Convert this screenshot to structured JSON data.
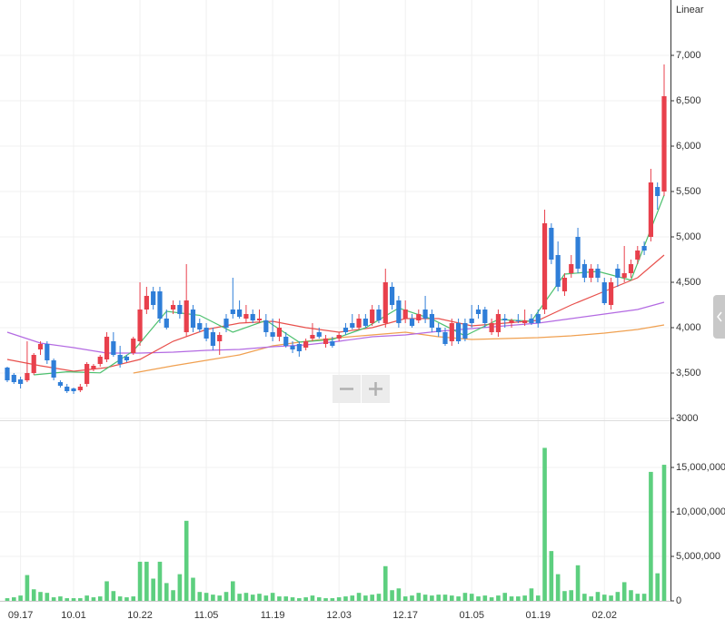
{
  "chart_data": [
    {
      "type": "candlestick",
      "scale_label": "Linear",
      "up_color": "#e8404c",
      "down_color": "#2f7ed8",
      "open": [
        3560,
        3480,
        3430,
        3420,
        3500,
        3760,
        3820,
        3640,
        3400,
        3350,
        3330,
        3310,
        3380,
        3540,
        3600,
        3650,
        3850,
        3700,
        3680,
        3720,
        3850,
        4200,
        4400,
        4400,
        4100,
        4200,
        4250,
        3950,
        4200,
        4050,
        4000,
        3950,
        3850,
        4100,
        4200,
        4200,
        4100,
        4150,
        4080,
        4080,
        3950,
        3900,
        3900,
        3800,
        3820,
        3780,
        3880,
        3950,
        3820,
        3850,
        3880,
        4000,
        4050,
        4000,
        4100,
        4050,
        4200,
        4050,
        4450,
        4300,
        4100,
        4100,
        4080,
        4200,
        4150,
        4000,
        3950,
        3850,
        4050,
        4050,
        4100,
        4200,
        4200,
        3950,
        3950,
        4100,
        4050,
        4080,
        4050,
        4100,
        4150,
        4200,
        5100,
        4800,
        4400,
        4600,
        5000,
        4700,
        4550,
        4650,
        4500,
        4250,
        4650,
        4550,
        4600,
        4750,
        4900,
        5000,
        5550,
        5500
      ],
      "high": [
        3570,
        3500,
        3460,
        3850,
        3720,
        3850,
        3850,
        3660,
        3420,
        3380,
        3340,
        3380,
        3620,
        3600,
        3700,
        3950,
        3950,
        3800,
        3700,
        3900,
        4500,
        4450,
        4450,
        4450,
        4200,
        4300,
        4300,
        4700,
        4250,
        4100,
        4050,
        4000,
        3950,
        4150,
        4550,
        4300,
        4250,
        4200,
        4200,
        4150,
        4100,
        4100,
        3950,
        3850,
        3850,
        3880,
        4050,
        4000,
        3920,
        3900,
        3950,
        4050,
        4150,
        4150,
        4150,
        4250,
        4250,
        4650,
        4500,
        4350,
        4300,
        4150,
        4200,
        4350,
        4200,
        4050,
        4000,
        4100,
        4100,
        4100,
        4250,
        4250,
        4230,
        4100,
        4200,
        4150,
        4100,
        4150,
        4200,
        4150,
        4200,
        5300,
        5150,
        4950,
        4600,
        4800,
        5100,
        4750,
        4700,
        4700,
        4550,
        4550,
        4700,
        4900,
        4750,
        4900,
        4950,
        5750,
        5600,
        6900
      ],
      "low": [
        3400,
        3380,
        3330,
        3400,
        3480,
        3700,
        3600,
        3420,
        3340,
        3280,
        3270,
        3290,
        3350,
        3520,
        3570,
        3620,
        3680,
        3560,
        3620,
        3700,
        3800,
        4150,
        4200,
        4050,
        3980,
        4150,
        4100,
        3900,
        3950,
        3950,
        3850,
        3750,
        3700,
        3950,
        4100,
        4100,
        4050,
        4050,
        4050,
        3900,
        3850,
        3850,
        3780,
        3720,
        3680,
        3750,
        3850,
        3880,
        3780,
        3780,
        3850,
        3920,
        3980,
        3980,
        4000,
        4020,
        4050,
        4000,
        4200,
        4000,
        4050,
        4000,
        4050,
        4050,
        3950,
        3900,
        3800,
        3800,
        3820,
        3850,
        4000,
        4100,
        4000,
        3920,
        3900,
        4000,
        4000,
        4050,
        4020,
        4030,
        4000,
        4150,
        4700,
        4400,
        4350,
        4550,
        4600,
        4500,
        4500,
        4500,
        4250,
        4200,
        4450,
        4500,
        4550,
        4700,
        4800,
        4950,
        5300,
        5450
      ],
      "close": [
        3420,
        3400,
        3380,
        3500,
        3700,
        3820,
        3640,
        3450,
        3360,
        3300,
        3300,
        3350,
        3600,
        3580,
        3680,
        3900,
        3700,
        3600,
        3640,
        3880,
        4200,
        4350,
        4250,
        4100,
        4000,
        4250,
        4150,
        4300,
        4000,
        3980,
        3880,
        3800,
        3920,
        4000,
        4150,
        4120,
        4150,
        4080,
        4100,
        3950,
        3900,
        4000,
        3800,
        3760,
        3740,
        3850,
        3920,
        3900,
        3880,
        3800,
        3920,
        3950,
        4000,
        4100,
        4020,
        4200,
        4080,
        4500,
        4250,
        4050,
        4200,
        4020,
        4150,
        4100,
        4000,
        3950,
        3820,
        4050,
        3850,
        3880,
        4050,
        4150,
        4050,
        4050,
        4150,
        4080,
        4080,
        4070,
        4080,
        4050,
        4050,
        5150,
        4750,
        4450,
        4550,
        4700,
        4650,
        4550,
        4650,
        4550,
        4270,
        4500,
        4550,
        4600,
        4700,
        4850,
        4850,
        5600,
        5450,
        6550
      ],
      "lines": [
        {
          "color": "#f0a050",
          "x": [
            19,
            25,
            30,
            35,
            40,
            45,
            50,
            55,
            60,
            65,
            70,
            75,
            80,
            85,
            90,
            95,
            99
          ],
          "values": [
            3500,
            3580,
            3640,
            3700,
            3800,
            3850,
            3890,
            3920,
            3950,
            3900,
            3870,
            3880,
            3890,
            3910,
            3940,
            3980,
            4030
          ]
        },
        {
          "color": "#b36ae2",
          "x": [
            0,
            5,
            10,
            15,
            20,
            25,
            30,
            35,
            40,
            45,
            50,
            55,
            60,
            65,
            70,
            75,
            80,
            85,
            90,
            95,
            99
          ],
          "values": [
            3950,
            3830,
            3780,
            3720,
            3720,
            3730,
            3750,
            3760,
            3790,
            3810,
            3850,
            3900,
            3920,
            3960,
            3990,
            4020,
            4050,
            4100,
            4150,
            4200,
            4280
          ]
        },
        {
          "color": "#e8504c",
          "x": [
            0,
            5,
            10,
            15,
            20,
            25,
            30,
            35,
            40,
            45,
            50,
            55,
            60,
            65,
            70,
            75,
            80,
            85,
            90,
            95,
            99
          ],
          "values": [
            3650,
            3580,
            3520,
            3560,
            3650,
            3850,
            3980,
            4050,
            4070,
            4000,
            3950,
            4000,
            4100,
            4100,
            4020,
            4050,
            4080,
            4250,
            4400,
            4550,
            4800
          ]
        },
        {
          "color": "#4cc06e",
          "x": [
            4,
            9,
            14,
            19,
            24,
            29,
            34,
            39,
            44,
            49,
            54,
            59,
            64,
            69,
            74,
            79,
            84,
            89,
            94,
            99
          ],
          "values": [
            3480,
            3514,
            3502,
            3744,
            4180,
            4136,
            3950,
            4080,
            3840,
            3870,
            3998,
            4216,
            4094,
            3910,
            4090,
            4072,
            4590,
            4620,
            4524,
            5460
          ]
        }
      ],
      "ylim": [
        3000,
        7500
      ],
      "yticks": [
        3000,
        {
          "value": 3500,
          "label": "3,500"
        },
        {
          "value": 4000,
          "label": "4,000"
        },
        {
          "value": 4500,
          "label": "4,500"
        },
        {
          "value": 5000,
          "label": "5,000"
        },
        {
          "value": 5500,
          "label": "5,500"
        },
        {
          "value": 6000,
          "label": "6,000"
        },
        {
          "value": 6500,
          "label": "6,500"
        },
        {
          "value": 7000,
          "label": "7,000"
        }
      ],
      "grid": true
    },
    {
      "type": "bar",
      "color": "#5dcf7f",
      "categories": [
        null,
        null,
        "09.17",
        null,
        null,
        null,
        null,
        null,
        null,
        null,
        "10.01",
        null,
        null,
        null,
        null,
        null,
        null,
        null,
        null,
        null,
        "10.22",
        null,
        null,
        null,
        null,
        null,
        null,
        null,
        null,
        null,
        "11.05",
        null,
        null,
        null,
        null,
        null,
        null,
        null,
        null,
        null,
        "11.19",
        null,
        null,
        null,
        null,
        null,
        null,
        null,
        null,
        null,
        "12.03",
        null,
        null,
        null,
        null,
        null,
        null,
        null,
        null,
        null,
        "12.17",
        null,
        null,
        null,
        null,
        null,
        null,
        null,
        null,
        null,
        "01.05",
        null,
        null,
        null,
        null,
        null,
        null,
        null,
        null,
        null,
        "01.19",
        null,
        null,
        null,
        null,
        null,
        null,
        null,
        null,
        null,
        "02.02",
        null,
        null,
        null,
        null,
        null,
        null,
        null,
        null,
        null
      ],
      "values": [
        300000,
        400000,
        600000,
        2900000,
        1300000,
        1000000,
        900000,
        400000,
        500000,
        300000,
        300000,
        300000,
        600000,
        400000,
        500000,
        2200000,
        1100000,
        500000,
        400000,
        500000,
        4400000,
        4400000,
        2500000,
        4400000,
        2000000,
        1200000,
        3000000,
        9000000,
        2600000,
        1000000,
        900000,
        700000,
        600000,
        1000000,
        2200000,
        800000,
        900000,
        700000,
        800000,
        600000,
        900000,
        500000,
        500000,
        400000,
        300000,
        400000,
        600000,
        400000,
        300000,
        300000,
        400000,
        500000,
        600000,
        900000,
        600000,
        700000,
        800000,
        3900000,
        1200000,
        1400000,
        500000,
        600000,
        900000,
        700000,
        600000,
        700000,
        700000,
        600000,
        500000,
        900000,
        800000,
        500000,
        600000,
        400000,
        600000,
        900000,
        500000,
        500000,
        600000,
        1400000,
        600000,
        17200000,
        5600000,
        3000000,
        1100000,
        1200000,
        4000000,
        800000,
        500000,
        1000000,
        700000,
        600000,
        1000000,
        2100000,
        1200000,
        800000,
        800000,
        14500000,
        3100000,
        15300000
      ],
      "ylim": [
        0,
        20000000
      ],
      "yticks": [
        0,
        {
          "value": 5000000,
          "label": "5,000,000"
        },
        {
          "value": 10000000,
          "label": "10,000,000"
        },
        {
          "value": 15000000,
          "label": "15,000,000"
        }
      ],
      "grid": true
    }
  ]
}
